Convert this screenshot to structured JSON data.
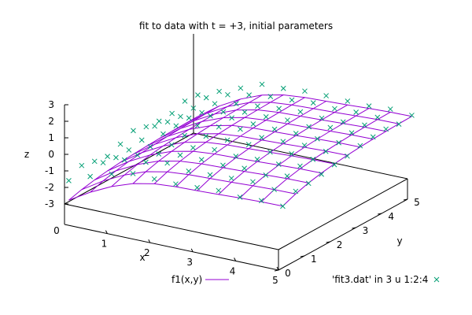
{
  "chart_data": {
    "type": "surface-3d",
    "title": "fit to data with t = +3, initial parameters",
    "xlabel": "x",
    "ylabel": "y",
    "zlabel": "z",
    "xlim": [
      0,
      5
    ],
    "ylim": [
      0,
      5
    ],
    "zlim": [
      -3,
      3
    ],
    "x_ticks": [
      "1",
      "2",
      "3",
      "4",
      "5"
    ],
    "x_origin_label": "0",
    "y_ticks": [
      "0",
      "1",
      "2",
      "3",
      "4",
      "5"
    ],
    "z_ticks": [
      "3",
      "2",
      "1",
      "0",
      "-1",
      "-2",
      "-3"
    ],
    "legend_placement": "bottom",
    "series": [
      {
        "name": "f1(x,y)",
        "kind": "surface",
        "color": "#9400d3",
        "x": [
          0.1,
          0.6,
          1.1,
          1.6,
          2.1,
          2.6,
          3.1,
          3.6,
          4.1,
          4.6,
          5.1
        ],
        "y": [
          0,
          0.5,
          1,
          1.5,
          2,
          2.5,
          3,
          3.5,
          4,
          4.5,
          5
        ],
        "z_formula": "approx: z = 2*sin(x+y)*exp(-0.35*(x+y)) + 1 - exp(-x) fitted appearance"
      },
      {
        "name": "'fit3.dat' in 3 u 1:2:4",
        "kind": "points",
        "color": "#009e73",
        "marker": "x"
      }
    ]
  }
}
